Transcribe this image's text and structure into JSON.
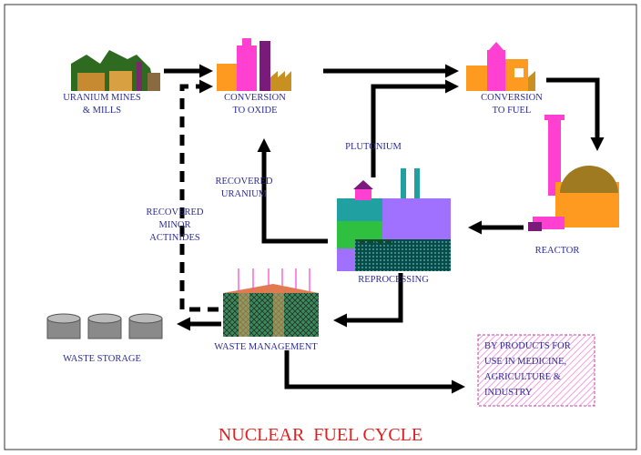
{
  "title": "NUCLEAR  FUEL CYCLE",
  "nodes": [
    {
      "label": [
        "URANIUM MINES",
        "& MILLS"
      ]
    },
    {
      "label": [
        "CONVERSION",
        "TO OXIDE"
      ]
    },
    {
      "label": [
        "CONVERSION",
        "TO FUEL"
      ]
    },
    {
      "label": [
        "REACTOR"
      ]
    },
    {
      "label": [
        "REPROCESSING"
      ]
    },
    {
      "label": [
        "WASTE MANAGEMENT"
      ]
    },
    {
      "label": [
        "WASTE STORAGE"
      ]
    },
    {
      "label": [
        "BY PRODUCTS FOR",
        "USE IN  MEDICINE,",
        "AGRICULTURE  &",
        "INDUSTRY"
      ]
    }
  ],
  "flows": [
    {
      "label": [
        "PLUTONIUM"
      ]
    },
    {
      "label": [
        "RECOVERED",
        "URANIUM"
      ]
    },
    {
      "label": [
        "RECOVERED",
        "MINOR",
        "ACTINIDES"
      ]
    }
  ]
}
